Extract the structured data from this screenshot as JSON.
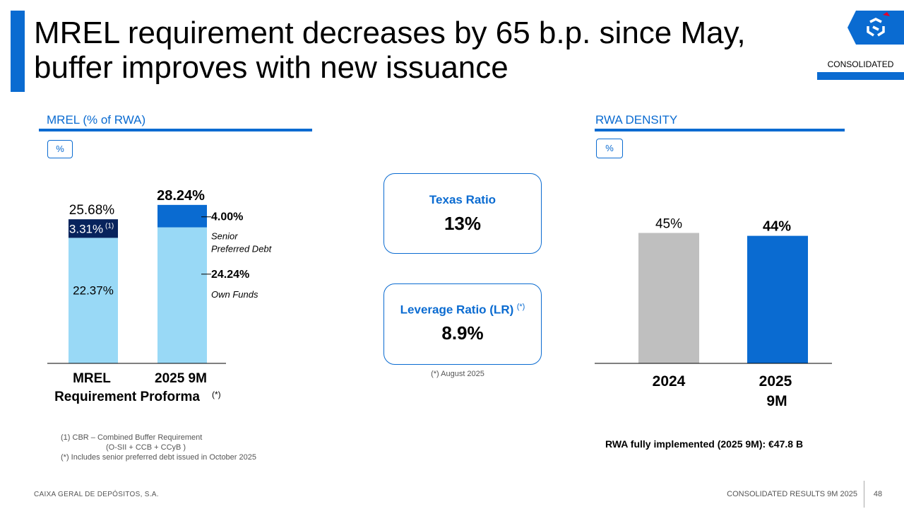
{
  "header": {
    "title_line1": "MREL requirement decreases by 65 b.p. since May,",
    "title_line2": "buffer improves with new issuance",
    "badge": "CONSOLIDATED"
  },
  "left_section": {
    "title": "MREL (% of RWA)",
    "unit": "%"
  },
  "right_section": {
    "title": "RWA DENSITY",
    "unit": "%"
  },
  "kpis": {
    "texas": {
      "label": "Texas Ratio",
      "value": "13%"
    },
    "leverage": {
      "label": "Leverage Ratio (LR)",
      "marker": "(*)",
      "value": "8.9%",
      "note": "(*) August 2025"
    }
  },
  "chart_data": [
    {
      "type": "bar",
      "stacked": true,
      "title": "MREL (% of RWA)",
      "categories": [
        "MREL Requirement Proforma",
        "2025 9M"
      ],
      "category_label_lines": [
        [
          "MREL",
          "Requirement Proforma"
        ],
        [
          "2025 9M"
        ]
      ],
      "category_markers": [
        "(*)",
        ""
      ],
      "series": [
        {
          "name": "Base",
          "values": [
            22.37,
            24.24
          ],
          "labels": [
            "22.37%",
            "24.24%"
          ],
          "color": "#99d9f6"
        },
        {
          "name": "Top",
          "values": [
            3.31,
            4.0
          ],
          "labels": [
            "3.31%",
            "4.00%"
          ],
          "color_by_bar": [
            "#07235c",
            "#0a6bd1"
          ]
        }
      ],
      "totals": [
        "25.68%",
        "28.24%"
      ],
      "cbr_marker": "(1)",
      "annotations": {
        "top_line1": "Senior",
        "top_line2": "Preferred Debt",
        "base": "Own Funds"
      },
      "ylim": [
        0,
        32
      ]
    },
    {
      "type": "bar",
      "title": "RWA DENSITY",
      "categories": [
        "2024",
        "2025 9M"
      ],
      "category_label_lines": [
        [
          "2024"
        ],
        [
          "2025",
          "9M"
        ]
      ],
      "values": [
        45,
        44
      ],
      "labels": [
        "45%",
        "44%"
      ],
      "colors": [
        "#bfbfbf",
        "#0a6bd1"
      ],
      "ylim": [
        0,
        50
      ]
    }
  ],
  "rwa_note": "RWA fully implemented (2025 9M): €47.8 B",
  "footnotes": {
    "f1": "(1)   CBR – Combined Buffer Requirement",
    "f1b": "(O-SII + CCB + CCyB )",
    "f2": "(*) Includes senior preferred debt issued in October 2025"
  },
  "footer": {
    "company": "CAIXA GERAL DE DEPÓSITOS, S.A.",
    "report": "CONSOLIDATED RESULTS 9M 2025",
    "page": "48"
  },
  "colors": {
    "accent": "#0a6bd1",
    "navy": "#07235c",
    "light_blue": "#99d9f6",
    "grey": "#bfbfbf"
  }
}
